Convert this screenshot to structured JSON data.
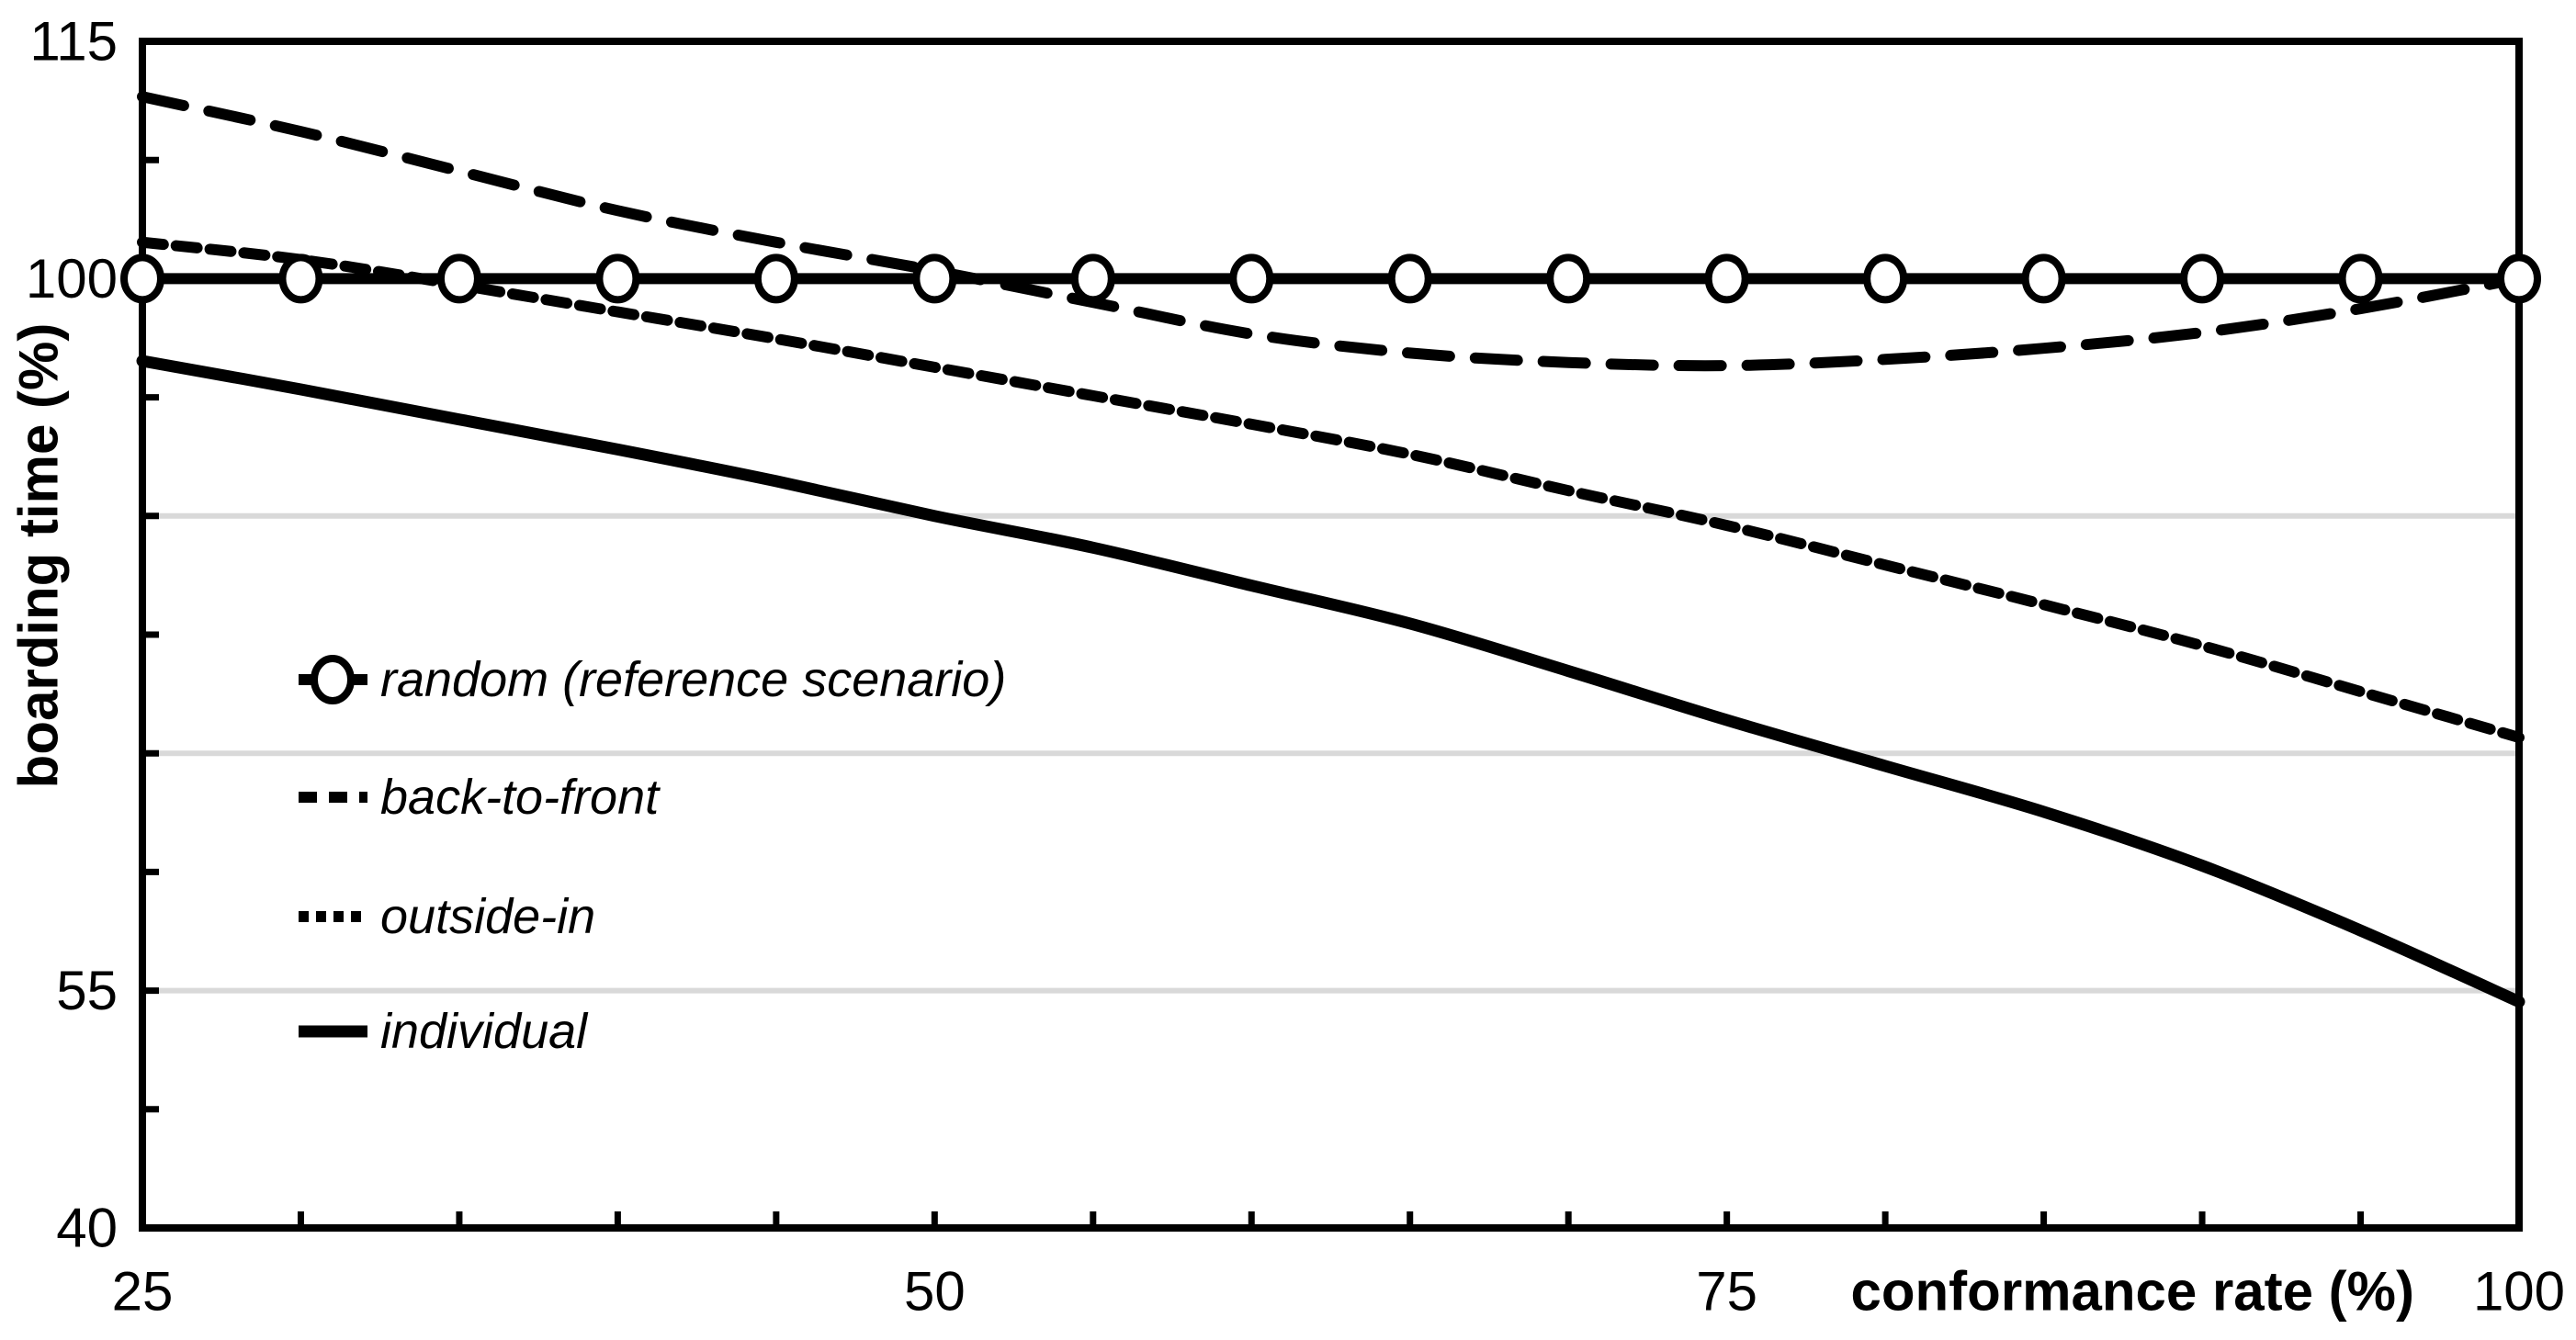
{
  "chart_data": {
    "type": "line",
    "title": "",
    "xlabel": "conformance rate (%)",
    "ylabel": "boarding time (%)",
    "grid": "horizontal",
    "legend_position": "inside-left",
    "colors": {
      "foreground": "#000000",
      "gridline": "#d9d9d9",
      "background": "#ffffff",
      "marker_fill": "#ffffff"
    },
    "x_axis": {
      "min": 25,
      "max": 100,
      "minor_tick_step": 5,
      "tick_labels": [
        "25",
        "50",
        "75",
        "100"
      ],
      "tick_label_values": [
        25,
        50,
        75,
        100
      ]
    },
    "y_axis": {
      "min": 40,
      "max": 115,
      "minor_tick_step": 7.5,
      "tick_labels": [
        "115",
        "100",
        "55",
        "40"
      ],
      "tick_label_values": [
        115,
        100,
        55,
        40
      ],
      "gridline_values": [
        85,
        70,
        55
      ]
    },
    "x": [
      25,
      30,
      35,
      40,
      45,
      50,
      55,
      60,
      65,
      70,
      75,
      80,
      85,
      90,
      95,
      100
    ],
    "series": [
      {
        "id": "random",
        "name": "random (reference scenario)",
        "style": "solid-circle",
        "values": [
          100,
          100,
          100,
          100,
          100,
          100,
          100,
          100,
          100,
          100,
          100,
          100,
          100,
          100,
          100,
          100
        ]
      },
      {
        "id": "back-to-front",
        "name": "back-to-front",
        "style": "long-dash",
        "values": [
          111.5,
          109.3,
          106.8,
          104.3,
          102.3,
          100.5,
          98.5,
          96.5,
          95.3,
          94.7,
          94.5,
          94.9,
          95.6,
          96.6,
          98.1,
          100
        ]
      },
      {
        "id": "outside-in",
        "name": "outside-in",
        "style": "short-dash",
        "values": [
          102.3,
          101.2,
          99.6,
          97.9,
          96.2,
          94.4,
          92.6,
          90.8,
          88.9,
          86.6,
          84.4,
          81.9,
          79.4,
          76.8,
          73.9,
          71
        ]
      },
      {
        "id": "individual",
        "name": "individual",
        "style": "solid",
        "values": [
          94.8,
          93,
          91.1,
          89.2,
          87.2,
          85,
          83,
          80.6,
          78.2,
          75.2,
          72.1,
          69.2,
          66.3,
          62.9,
          58.8,
          54.3
        ]
      }
    ],
    "legend": {
      "items": [
        "random (reference scenario)",
        "back-to-front",
        "outside-in",
        "individual"
      ]
    }
  }
}
